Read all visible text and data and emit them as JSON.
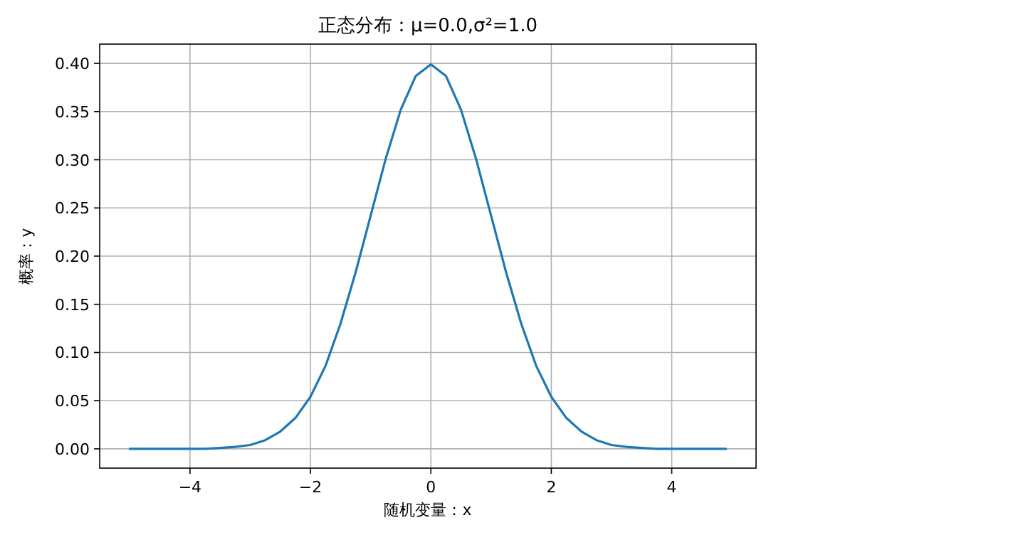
{
  "chart_data": {
    "type": "line",
    "title": "正态分布：μ=0.0,σ²=1.0",
    "xlabel": "随机变量：x",
    "ylabel": "概率：y",
    "x": [
      -5,
      -4.75,
      -4.5,
      -4.25,
      -4,
      -3.75,
      -3.5,
      -3.25,
      -3,
      -2.75,
      -2.5,
      -2.25,
      -2,
      -1.75,
      -1.5,
      -1.25,
      -1,
      -0.75,
      -0.5,
      -0.25,
      0,
      0.25,
      0.5,
      0.75,
      1,
      1.25,
      1.5,
      1.75,
      2,
      2.25,
      2.5,
      2.75,
      3,
      3.25,
      3.5,
      3.75,
      4,
      4.25,
      4.5,
      4.75,
      4.9
    ],
    "series": [
      {
        "color": "#1f77b4",
        "values": [
          0,
          0,
          0,
          0,
          0,
          0,
          0.001,
          0.002,
          0.004,
          0.009,
          0.018,
          0.032,
          0.054,
          0.086,
          0.13,
          0.183,
          0.242,
          0.301,
          0.352,
          0.387,
          0.399,
          0.387,
          0.352,
          0.301,
          0.242,
          0.183,
          0.13,
          0.086,
          0.054,
          0.032,
          0.018,
          0.009,
          0.004,
          0.002,
          0.001,
          0,
          0,
          0,
          0,
          0,
          0
        ]
      }
    ],
    "xlim": [
      -5.5,
      5.4
    ],
    "ylim": [
      -0.02,
      0.42
    ],
    "xticks": [
      {
        "value": -4,
        "label": "−4"
      },
      {
        "value": -2,
        "label": "−2"
      },
      0,
      2,
      4
    ],
    "yticks": [
      {
        "value": 0,
        "label": "0.00"
      },
      {
        "value": 0.05,
        "label": "0.05"
      },
      {
        "value": 0.1,
        "label": "0.10"
      },
      {
        "value": 0.15,
        "label": "0.15"
      },
      {
        "value": 0.2,
        "label": "0.20"
      },
      {
        "value": 0.25,
        "label": "0.25"
      },
      {
        "value": 0.3,
        "label": "0.30"
      },
      {
        "value": 0.35,
        "label": "0.35"
      },
      {
        "value": 0.4,
        "label": "0.40"
      }
    ],
    "grid": true
  }
}
